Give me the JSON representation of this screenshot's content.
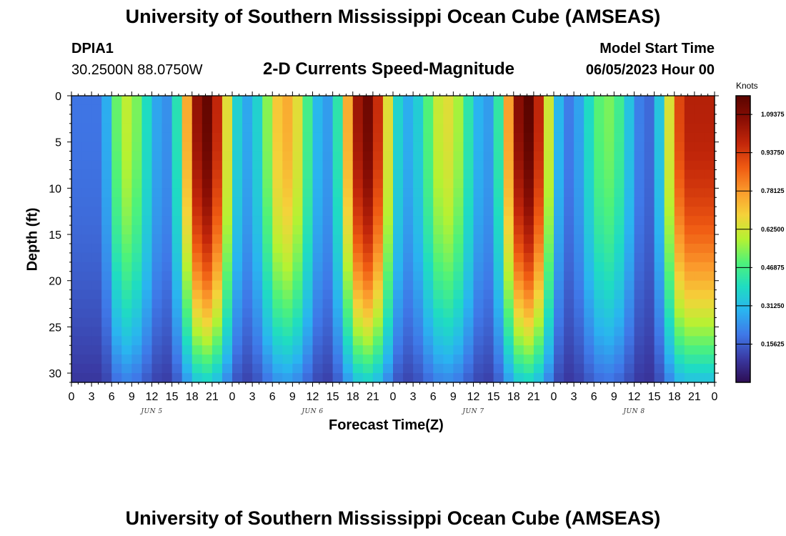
{
  "header": {
    "title": "University of Southern Mississippi Ocean Cube (AMSEAS)",
    "station_id": "DPIA1",
    "location": "30.2500N  88.0750W",
    "subtitle": "2-D Currents Speed-Magnitude",
    "model_start_label": "Model Start Time",
    "model_start_value": "06/05/2023 Hour 00",
    "footer_title": "University of Southern Mississippi Ocean Cube (AMSEAS)"
  },
  "chart_data": {
    "type": "heatmap",
    "title": "2-D Currents Speed-Magnitude",
    "xlabel": "Forecast Time(Z)",
    "ylabel": "Depth (ft)",
    "units": "Knots",
    "x_hours": [
      0,
      96
    ],
    "x_step_hours": 1.5,
    "ylim": [
      0,
      31
    ],
    "y_step_ft": 1,
    "x_tick_labels": [
      "0",
      "3",
      "6",
      "9",
      "12",
      "15",
      "18",
      "21",
      "0",
      "3",
      "6",
      "9",
      "12",
      "15",
      "18",
      "21",
      "0",
      "3",
      "6",
      "9",
      "12",
      "15",
      "18",
      "21",
      "0",
      "3",
      "6",
      "9",
      "12",
      "15",
      "18",
      "21",
      "0"
    ],
    "day_labels": [
      {
        "text": "JUN 5",
        "hour": 12
      },
      {
        "text": "JUN 6",
        "hour": 36
      },
      {
        "text": "JUN 7",
        "hour": 60
      },
      {
        "text": "JUN 8",
        "hour": 84
      }
    ],
    "y_ticks": [
      0,
      5,
      10,
      15,
      20,
      25,
      30
    ],
    "colorbar": {
      "min": 0,
      "max": 1.17,
      "labels": [
        "1.09375",
        "0.93750",
        "0.78125",
        "0.62500",
        "0.46875",
        "0.31250",
        "0.15625"
      ],
      "label_values": [
        1.09375,
        0.9375,
        0.78125,
        0.625,
        0.46875,
        0.3125,
        0.15625
      ],
      "stops": [
        "#2d0d53",
        "#3a3aa3",
        "#3f78e8",
        "#2ab4f0",
        "#1fdcc2",
        "#4ef27a",
        "#b5f232",
        "#f5d23a",
        "#fb9a2c",
        "#ef5a12",
        "#c3270a",
        "#8a0e04",
        "#5a0400"
      ]
    },
    "speed_peaks": [
      {
        "hour": 4,
        "speed": 0.14
      },
      {
        "hour": 8,
        "speed": 0.55
      },
      {
        "hour": 14,
        "speed": 0.18
      },
      {
        "hour": 20,
        "speed": 1.1
      },
      {
        "hour": 26,
        "speed": 0.22
      },
      {
        "hour": 32,
        "speed": 0.7
      },
      {
        "hour": 38,
        "speed": 0.2
      },
      {
        "hour": 44,
        "speed": 1.08
      },
      {
        "hour": 50,
        "speed": 0.23
      },
      {
        "hour": 56,
        "speed": 0.6
      },
      {
        "hour": 62,
        "speed": 0.2
      },
      {
        "hour": 68,
        "speed": 1.12
      },
      {
        "hour": 74,
        "speed": 0.15
      },
      {
        "hour": 80,
        "speed": 0.48
      },
      {
        "hour": 86,
        "speed": 0.12
      },
      {
        "hour": 92,
        "speed": 0.95
      }
    ]
  }
}
